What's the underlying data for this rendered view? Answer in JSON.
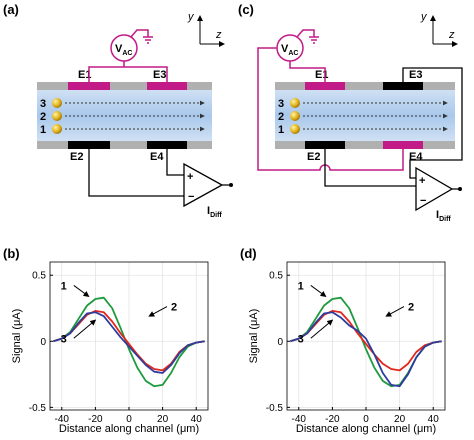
{
  "diagrams": [
    {
      "label": "(a)",
      "source": {
        "main": "V",
        "sub": "AC"
      },
      "electrodes": [
        "E1",
        "E2",
        "E3",
        "E4"
      ],
      "particles": [
        "3",
        "2",
        "1"
      ],
      "amplifier": {
        "plus": "+",
        "minus": "−",
        "output": {
          "main": "I",
          "sub": "Diff"
        }
      },
      "axes": [
        "y",
        "z"
      ]
    },
    {
      "label": "(c)",
      "source": {
        "main": "V",
        "sub": "AC"
      },
      "electrodes": [
        "E1",
        "E2",
        "E3",
        "E4"
      ],
      "particles": [
        "3",
        "2",
        "1"
      ],
      "amplifier": {
        "plus": "+",
        "minus": "−",
        "output": {
          "main": "I",
          "sub": "Diff"
        }
      },
      "axes": [
        "y",
        "z"
      ]
    }
  ],
  "chart_data": [
    {
      "type": "line",
      "panel_label": "(b)",
      "xlabel": "Distance along channel (μm)",
      "ylabel": "Signal (μA)",
      "x": [
        -45,
        -40,
        -35,
        -30,
        -25,
        -20,
        -15,
        -10,
        -5,
        0,
        5,
        10,
        15,
        20,
        25,
        30,
        35,
        40,
        45
      ],
      "series": [
        {
          "name": "1",
          "color": "#1e9a3c",
          "values": [
            0.0,
            0.02,
            0.07,
            0.17,
            0.27,
            0.32,
            0.33,
            0.25,
            0.1,
            -0.06,
            -0.2,
            -0.3,
            -0.34,
            -0.33,
            -0.24,
            -0.12,
            -0.04,
            -0.01,
            0.0
          ]
        },
        {
          "name": "2",
          "color": "#e3261c",
          "values": [
            0.0,
            0.02,
            0.06,
            0.13,
            0.2,
            0.23,
            0.22,
            0.15,
            0.06,
            -0.02,
            -0.1,
            -0.17,
            -0.21,
            -0.22,
            -0.17,
            -0.08,
            -0.03,
            -0.01,
            0.0
          ]
        },
        {
          "name": "3",
          "color": "#2d3c9c",
          "values": [
            0.0,
            0.02,
            0.06,
            0.14,
            0.21,
            0.22,
            0.19,
            0.11,
            0.03,
            -0.04,
            -0.11,
            -0.18,
            -0.23,
            -0.24,
            -0.18,
            -0.09,
            -0.03,
            -0.01,
            0.0
          ]
        }
      ],
      "xlim": [
        -47,
        47
      ],
      "ylim": [
        -0.52,
        0.6
      ],
      "xticks": [
        -40,
        -20,
        0,
        20,
        40
      ],
      "yticks": [
        -0.5,
        0,
        0.5
      ],
      "grid": true
    },
    {
      "type": "line",
      "panel_label": "(d)",
      "xlabel": "Distance along channel (μm)",
      "ylabel": "Signal (μA)",
      "x": [
        -45,
        -40,
        -35,
        -30,
        -25,
        -20,
        -15,
        -10,
        -5,
        0,
        5,
        10,
        15,
        20,
        25,
        30,
        35,
        40,
        45
      ],
      "series": [
        {
          "name": "1",
          "color": "#1e9a3c",
          "values": [
            0.0,
            0.02,
            0.07,
            0.17,
            0.27,
            0.32,
            0.33,
            0.25,
            0.1,
            -0.06,
            -0.2,
            -0.3,
            -0.34,
            -0.33,
            -0.24,
            -0.12,
            -0.04,
            -0.01,
            0.0
          ]
        },
        {
          "name": "2",
          "color": "#e3261c",
          "values": [
            0.0,
            0.02,
            0.06,
            0.13,
            0.2,
            0.23,
            0.22,
            0.15,
            0.06,
            -0.02,
            -0.1,
            -0.17,
            -0.21,
            -0.22,
            -0.17,
            -0.08,
            -0.03,
            -0.01,
            0.0
          ]
        },
        {
          "name": "3",
          "color": "#2d3c9c",
          "values": [
            0.0,
            0.02,
            0.06,
            0.14,
            0.21,
            0.22,
            0.18,
            0.12,
            0.08,
            0.02,
            -0.1,
            -0.24,
            -0.33,
            -0.34,
            -0.25,
            -0.12,
            -0.04,
            -0.01,
            0.0
          ]
        }
      ],
      "xlim": [
        -47,
        47
      ],
      "ylim": [
        -0.52,
        0.6
      ],
      "xticks": [
        -40,
        -20,
        0,
        20,
        40
      ],
      "yticks": [
        -0.5,
        0,
        0.5
      ],
      "grid": true
    }
  ]
}
